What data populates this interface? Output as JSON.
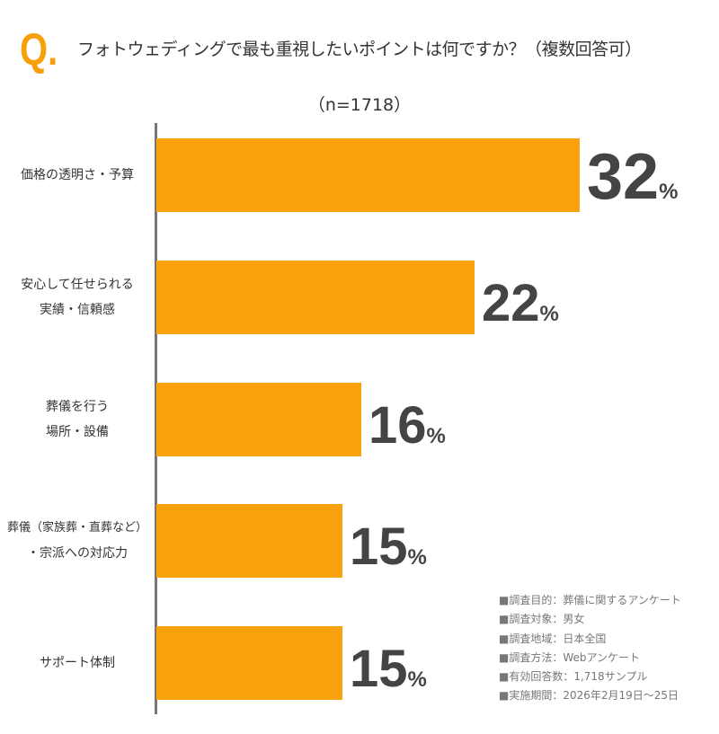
{
  "header": {
    "q_mark": "Q.",
    "title": "フォトウェディングで最も重視したいポイントは何ですか？（複数回答可）",
    "sample": "（n=1718）"
  },
  "chart_data": {
    "type": "bar",
    "orientation": "horizontal",
    "unit": "%",
    "bar_color": "#f9a20d",
    "categories": [
      [
        "価格の透明さ・予算"
      ],
      [
        "安心して任せられる",
        "実績・信頼感"
      ],
      [
        "葬儀を行う",
        "場所・設備"
      ],
      [
        "葬儀（家族葬・直葬など）",
        "・宗派への対応力"
      ],
      [
        "サポート体制"
      ]
    ],
    "values": [
      32,
      22,
      16,
      15,
      15
    ],
    "xlim": [
      0,
      34
    ]
  },
  "notes": [
    "■調査目的：葬儀に関するアンケート",
    "■調査対象：男女",
    "■調査地域：日本全国",
    "■調査方法：Webアンケート",
    "■有効回答数：1,718サンプル",
    "■実施期間：2026年2月19日～25日"
  ]
}
